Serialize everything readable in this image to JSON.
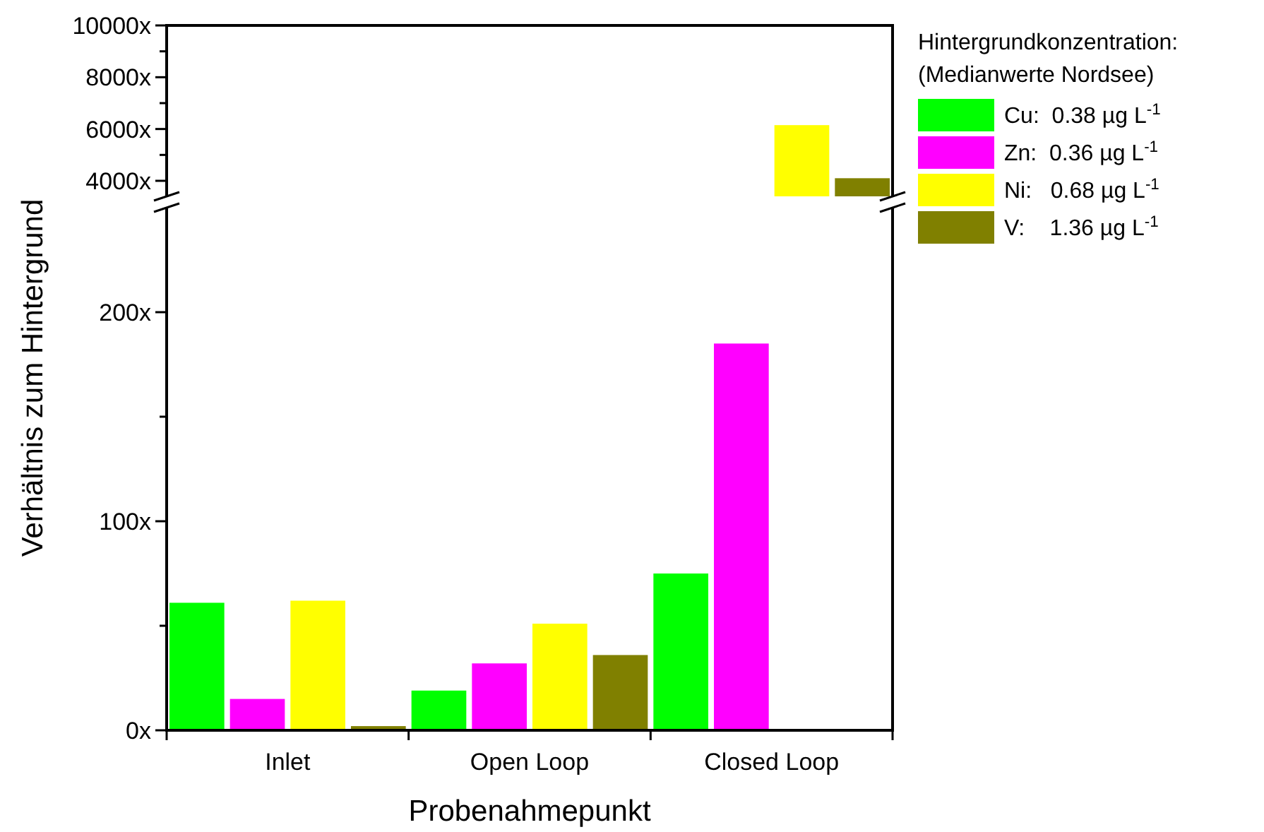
{
  "chart_data": [
    {
      "type": "bar",
      "categories": [
        null,
        null,
        null
      ],
      "ylim": [
        3400,
        10000
      ],
      "yticks": [
        {
          "value": 4000,
          "label": "4000x"
        },
        {
          "value": 5000,
          "label": null
        },
        {
          "value": 6000,
          "label": "6000x"
        },
        {
          "value": 7000,
          "label": null
        },
        {
          "value": 8000,
          "label": "8000x"
        },
        {
          "value": 9000,
          "label": null
        },
        {
          "value": 10000,
          "label": "10000x"
        }
      ],
      "legend": "right",
      "legend_title": "Hintergrundkonzentration:\n(Medianwerte Nordsee)",
      "series": [
        {
          "name": "Cu:  0.38 µg L$^{-1}$",
          "color": "#00ff00",
          "values": [
            null,
            null,
            null
          ]
        },
        {
          "name": "Zn:  0.36 µg L$^{-1}$",
          "color": "#ff00ff",
          "values": [
            null,
            null,
            null
          ]
        },
        {
          "name": "Ni:   0.68 µg L$^{-1}$",
          "color": "#ffff00",
          "values": [
            null,
            null,
            6150
          ]
        },
        {
          "name": "V:    1.36 µg L$^{-1}$",
          "color": "#808000",
          "values": [
            null,
            null,
            4100
          ]
        }
      ]
    },
    {
      "type": "bar",
      "categories": [
        "Inlet",
        "Open Loop",
        "Closed Loop"
      ],
      "ylim": [
        0,
        250
      ],
      "yticks": [
        {
          "value": 0,
          "label": "0x"
        },
        {
          "value": 50,
          "label": null
        },
        {
          "value": 100,
          "label": "100x"
        },
        {
          "value": 150,
          "label": null
        },
        {
          "value": 200,
          "label": "200x"
        }
      ],
      "xlabel": "Probenahmepunkt",
      "ylabel": "Verhältnis zum Hintergrund",
      "series": [
        {
          "color": "#00ff00",
          "values": [
            61,
            19,
            75
          ]
        },
        {
          "color": "#ff00ff",
          "values": [
            15,
            32,
            185
          ]
        },
        {
          "color": "#ffff00",
          "values": [
            62,
            51,
            null
          ]
        },
        {
          "color": "#808000",
          "values": [
            2,
            36,
            null
          ]
        }
      ]
    }
  ]
}
